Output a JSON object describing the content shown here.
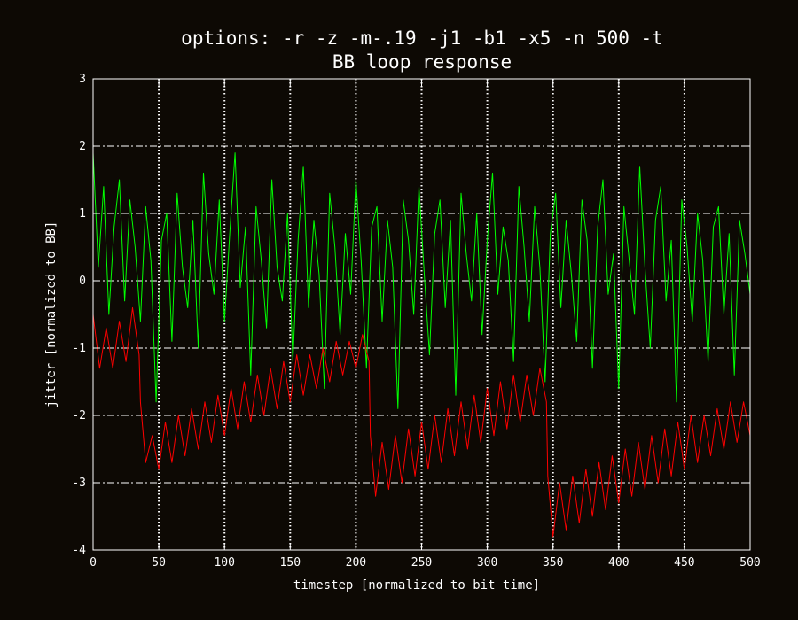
{
  "chart_data": {
    "type": "line",
    "title_line1": "options:  -r -z -m-.19 -j1 -b1 -x5 -n 500 -t",
    "title_line2": "BB loop response",
    "xlabel": "timestep [normalized to bit time]",
    "ylabel": "jitter [normalized to BB]",
    "xlim": [
      0,
      500
    ],
    "ylim": [
      -4,
      3
    ],
    "x_ticks": [
      "0",
      "50",
      "100",
      "150",
      "200",
      "250",
      "300",
      "350",
      "400",
      "450",
      "500"
    ],
    "y_ticks": [
      "-4",
      "-3",
      "-2",
      "-1",
      "0",
      "1",
      "2",
      "3"
    ],
    "grid": true,
    "background_color": "#0d0904",
    "series": [
      {
        "color": "#00ff00",
        "x": [
          0,
          4,
          8,
          12,
          16,
          20,
          24,
          28,
          32,
          36,
          40,
          44,
          48,
          52,
          56,
          60,
          64,
          68,
          72,
          76,
          80,
          84,
          88,
          92,
          96,
          100,
          104,
          108,
          112,
          116,
          120,
          124,
          128,
          132,
          136,
          140,
          144,
          148,
          152,
          156,
          160,
          164,
          168,
          172,
          176,
          180,
          184,
          188,
          192,
          196,
          200,
          204,
          208,
          212,
          216,
          220,
          224,
          228,
          232,
          236,
          240,
          244,
          248,
          252,
          256,
          260,
          264,
          268,
          272,
          276,
          280,
          284,
          288,
          292,
          296,
          300,
          304,
          308,
          312,
          316,
          320,
          324,
          328,
          332,
          336,
          340,
          344,
          348,
          352,
          356,
          360,
          364,
          368,
          372,
          376,
          380,
          384,
          388,
          392,
          396,
          400,
          404,
          408,
          412,
          416,
          420,
          424,
          428,
          432,
          436,
          440,
          444,
          448,
          452,
          456,
          460,
          464,
          468,
          472,
          476,
          480,
          484,
          488,
          492,
          496,
          500
        ],
        "y": [
          1.9,
          0.2,
          1.4,
          -0.5,
          0.8,
          1.5,
          -0.3,
          1.2,
          0.5,
          -0.6,
          1.1,
          0.3,
          -1.8,
          0.6,
          1.0,
          -0.9,
          1.3,
          0.2,
          -0.4,
          0.9,
          -1.0,
          1.6,
          0.4,
          -0.2,
          1.2,
          -0.6,
          0.7,
          1.9,
          -0.1,
          0.8,
          -1.4,
          1.1,
          0.3,
          -0.7,
          1.5,
          0.2,
          -0.3,
          1.0,
          -1.2,
          0.6,
          1.7,
          -0.4,
          0.9,
          0.1,
          -1.6,
          1.3,
          0.5,
          -0.8,
          0.7,
          -0.2,
          1.5,
          0.3,
          -1.3,
          0.8,
          1.1,
          -0.6,
          0.9,
          0.2,
          -1.9,
          1.2,
          0.6,
          -0.5,
          1.4,
          0.1,
          -1.1,
          0.7,
          1.2,
          -0.4,
          0.9,
          -1.7,
          1.3,
          0.4,
          -0.3,
          1.0,
          -0.8,
          0.6,
          1.6,
          -0.2,
          0.8,
          0.3,
          -1.2,
          1.4,
          0.5,
          -0.6,
          1.1,
          0.2,
          -1.5,
          0.7,
          1.3,
          -0.4,
          0.9,
          0.1,
          -0.9,
          1.2,
          0.6,
          -1.3,
          0.8,
          1.5,
          -0.2,
          0.4,
          -1.6,
          1.1,
          0.3,
          -0.5,
          1.7,
          0.2,
          -1.0,
          0.9,
          1.4,
          -0.3,
          0.6,
          -1.8,
          1.2,
          0.5,
          -0.6,
          1.0,
          0.3,
          -1.2,
          0.8,
          1.1,
          -0.5,
          0.7,
          -1.4,
          0.9,
          0.4,
          -0.2
        ]
      },
      {
        "color": "#ff0000",
        "x": [
          0,
          5,
          10,
          15,
          20,
          25,
          30,
          35,
          36,
          40,
          45,
          50,
          55,
          60,
          65,
          70,
          75,
          80,
          85,
          90,
          95,
          100,
          105,
          110,
          115,
          120,
          125,
          130,
          135,
          140,
          145,
          150,
          155,
          160,
          165,
          170,
          175,
          180,
          185,
          190,
          195,
          200,
          205,
          210,
          211,
          215,
          220,
          225,
          230,
          235,
          240,
          245,
          250,
          255,
          260,
          265,
          270,
          275,
          280,
          285,
          290,
          295,
          300,
          305,
          310,
          315,
          320,
          325,
          330,
          335,
          340,
          345,
          346,
          350,
          355,
          360,
          365,
          370,
          375,
          380,
          385,
          390,
          395,
          400,
          405,
          410,
          415,
          420,
          425,
          430,
          435,
          440,
          445,
          450,
          455,
          460,
          465,
          470,
          475,
          480,
          485,
          490,
          495,
          500
        ],
        "y": [
          -0.5,
          -1.3,
          -0.7,
          -1.3,
          -0.6,
          -1.2,
          -0.4,
          -1.1,
          -1.8,
          -2.7,
          -2.3,
          -2.8,
          -2.1,
          -2.7,
          -2.0,
          -2.6,
          -1.9,
          -2.5,
          -1.8,
          -2.4,
          -1.7,
          -2.3,
          -1.6,
          -2.2,
          -1.5,
          -2.1,
          -1.4,
          -2.0,
          -1.3,
          -1.9,
          -1.2,
          -1.8,
          -1.1,
          -1.7,
          -1.1,
          -1.6,
          -1.0,
          -1.5,
          -0.9,
          -1.4,
          -0.9,
          -1.3,
          -0.8,
          -1.2,
          -2.3,
          -3.2,
          -2.4,
          -3.1,
          -2.3,
          -3.0,
          -2.2,
          -2.9,
          -2.1,
          -2.8,
          -2.0,
          -2.7,
          -1.9,
          -2.6,
          -1.8,
          -2.5,
          -1.7,
          -2.4,
          -1.6,
          -2.3,
          -1.5,
          -2.2,
          -1.4,
          -2.1,
          -1.4,
          -2.0,
          -1.3,
          -1.8,
          -2.9,
          -3.8,
          -3.0,
          -3.7,
          -2.9,
          -3.6,
          -2.8,
          -3.5,
          -2.7,
          -3.4,
          -2.6,
          -3.3,
          -2.5,
          -3.2,
          -2.4,
          -3.1,
          -2.3,
          -3.0,
          -2.2,
          -2.9,
          -2.1,
          -2.8,
          -2.0,
          -2.7,
          -2.0,
          -2.6,
          -1.9,
          -2.5,
          -1.8,
          -2.4,
          -1.8,
          -2.3
        ]
      }
    ]
  }
}
